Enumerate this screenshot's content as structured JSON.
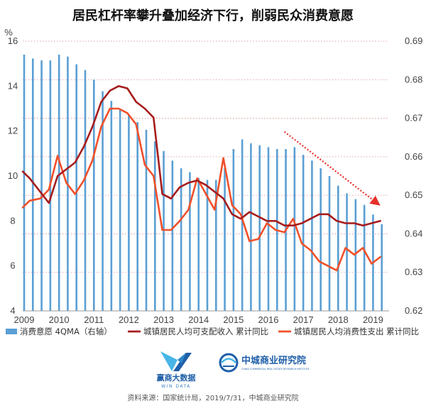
{
  "title": "居民杠杆率攀升叠加经济下行，削弱民众消费意愿",
  "source": "资料来源：国家统计局，2019/7/31，中城商业研究院",
  "logos": {
    "left_main": "赢商大数据",
    "left_sub": "WIN DATA",
    "right_main": "中城商业研究院",
    "right_sub": "CHINA COMMERCIAL REAL ESTATE RESEARCH INSTITUTE"
  },
  "colors": {
    "bars": "#5a9fd4",
    "income_line": "#a61c1c",
    "spending_line": "#f0502a",
    "trend_arrow": "#e8302a",
    "grid": "#d98c8c"
  },
  "chart_data": {
    "type": "bar+line",
    "left_axis": {
      "unit": "%",
      "ylim": [
        4,
        16
      ],
      "ticks": [
        4,
        6,
        8,
        10,
        12,
        14,
        16
      ]
    },
    "right_axis": {
      "ylim": [
        0.62,
        0.69
      ],
      "ticks": [
        0.62,
        0.63,
        0.64,
        0.65,
        0.66,
        0.67,
        0.68,
        0.69
      ]
    },
    "x_ticks": [
      "2009",
      "2010",
      "2011",
      "2012",
      "2013",
      "2014",
      "2015",
      "2016",
      "2017",
      "2018",
      "2019"
    ],
    "x_range": [
      2009,
      2019.5
    ],
    "grid": "horizontal dotted",
    "legend_position": "bottom",
    "legend": [
      {
        "key": "bars",
        "label": "消费意愿 4QMA（右轴）"
      },
      {
        "key": "income",
        "label": "城镇居民人均可支配收入 累计同比"
      },
      {
        "key": "spending",
        "label": "城镇居民人均消费性支出 累计同比"
      }
    ],
    "bars": {
      "name": "消费意愿 4QMA（右轴）",
      "axis": "right",
      "points": [
        [
          2009.0,
          0.6865
        ],
        [
          2009.25,
          0.6855
        ],
        [
          2009.5,
          0.685
        ],
        [
          2009.75,
          0.685
        ],
        [
          2010.0,
          0.6865
        ],
        [
          2010.25,
          0.686
        ],
        [
          2010.5,
          0.684
        ],
        [
          2010.75,
          0.6825
        ],
        [
          2011.0,
          0.68
        ],
        [
          2011.25,
          0.677
        ],
        [
          2011.5,
          0.6745
        ],
        [
          2011.75,
          0.6725
        ],
        [
          2012.0,
          0.671
        ],
        [
          2012.25,
          0.669
        ],
        [
          2012.5,
          0.667
        ],
        [
          2012.75,
          0.664
        ],
        [
          2013.0,
          0.6615
        ],
        [
          2013.25,
          0.659
        ],
        [
          2013.5,
          0.657
        ],
        [
          2013.75,
          0.656
        ],
        [
          2014.0,
          0.6545
        ],
        [
          2014.25,
          0.654
        ],
        [
          2014.5,
          0.654
        ],
        [
          2014.75,
          0.657
        ],
        [
          2015.0,
          0.662
        ],
        [
          2015.25,
          0.6645
        ],
        [
          2015.5,
          0.6635
        ],
        [
          2015.75,
          0.663
        ],
        [
          2016.0,
          0.6625
        ],
        [
          2016.25,
          0.662
        ],
        [
          2016.5,
          0.662
        ],
        [
          2016.75,
          0.6625
        ],
        [
          2017.0,
          0.6605
        ],
        [
          2017.25,
          0.659
        ],
        [
          2017.5,
          0.657
        ],
        [
          2017.75,
          0.655
        ],
        [
          2018.0,
          0.6525
        ],
        [
          2018.25,
          0.6505
        ],
        [
          2018.5,
          0.649
        ],
        [
          2018.75,
          0.6475
        ],
        [
          2019.0,
          0.645
        ],
        [
          2019.25,
          0.6425
        ]
      ]
    },
    "income": {
      "name": "城镇居民人均可支配收入 累计同比",
      "axis": "left",
      "points": [
        [
          2009.0,
          10.2
        ],
        [
          2009.2,
          9.9
        ],
        [
          2009.5,
          9.3
        ],
        [
          2009.75,
          8.8
        ],
        [
          2010.0,
          10.0
        ],
        [
          2010.25,
          10.3
        ],
        [
          2010.5,
          10.6
        ],
        [
          2010.75,
          11.3
        ],
        [
          2011.0,
          12.2
        ],
        [
          2011.25,
          13.3
        ],
        [
          2011.5,
          13.8
        ],
        [
          2011.75,
          14.0
        ],
        [
          2012.0,
          13.9
        ],
        [
          2012.25,
          13.3
        ],
        [
          2012.5,
          13.0
        ],
        [
          2012.75,
          12.6
        ],
        [
          2013.0,
          9.2
        ],
        [
          2013.25,
          9.0
        ],
        [
          2013.5,
          9.5
        ],
        [
          2013.75,
          9.7
        ],
        [
          2014.0,
          9.8
        ],
        [
          2014.25,
          9.6
        ],
        [
          2014.5,
          9.3
        ],
        [
          2014.75,
          9.0
        ],
        [
          2015.0,
          8.3
        ],
        [
          2015.25,
          8.1
        ],
        [
          2015.5,
          8.4
        ],
        [
          2015.75,
          8.2
        ],
        [
          2016.0,
          8.0
        ],
        [
          2016.25,
          8.0
        ],
        [
          2016.5,
          7.8
        ],
        [
          2016.75,
          7.8
        ],
        [
          2017.0,
          7.9
        ],
        [
          2017.25,
          8.1
        ],
        [
          2017.5,
          8.3
        ],
        [
          2017.75,
          8.3
        ],
        [
          2018.0,
          8.0
        ],
        [
          2018.25,
          7.9
        ],
        [
          2018.5,
          7.9
        ],
        [
          2018.75,
          7.8
        ],
        [
          2019.0,
          7.9
        ],
        [
          2019.25,
          8.0
        ]
      ]
    },
    "spending": {
      "name": "城镇居民人均消费性支出 累计同比",
      "axis": "left",
      "points": [
        [
          2009.0,
          8.6
        ],
        [
          2009.2,
          8.9
        ],
        [
          2009.5,
          9.0
        ],
        [
          2009.75,
          9.4
        ],
        [
          2010.0,
          10.9
        ],
        [
          2010.25,
          9.7
        ],
        [
          2010.5,
          9.2
        ],
        [
          2010.75,
          9.8
        ],
        [
          2011.0,
          10.7
        ],
        [
          2011.25,
          12.2
        ],
        [
          2011.5,
          13.0
        ],
        [
          2011.75,
          13.0
        ],
        [
          2012.0,
          12.8
        ],
        [
          2012.25,
          12.3
        ],
        [
          2012.5,
          10.5
        ],
        [
          2012.75,
          10.0
        ],
        [
          2013.0,
          7.6
        ],
        [
          2013.25,
          7.6
        ],
        [
          2013.5,
          8.0
        ],
        [
          2013.75,
          8.5
        ],
        [
          2014.0,
          9.9
        ],
        [
          2014.25,
          9.2
        ],
        [
          2014.5,
          8.5
        ],
        [
          2014.75,
          10.8
        ],
        [
          2015.0,
          8.7
        ],
        [
          2015.25,
          8.3
        ],
        [
          2015.5,
          7.1
        ],
        [
          2015.75,
          7.2
        ],
        [
          2016.0,
          7.9
        ],
        [
          2016.25,
          7.6
        ],
        [
          2016.5,
          7.5
        ],
        [
          2016.75,
          8.1
        ],
        [
          2017.0,
          7.0
        ],
        [
          2017.25,
          6.7
        ],
        [
          2017.5,
          6.2
        ],
        [
          2017.75,
          6.0
        ],
        [
          2018.0,
          5.8
        ],
        [
          2018.25,
          6.8
        ],
        [
          2018.5,
          6.5
        ],
        [
          2018.75,
          6.8
        ],
        [
          2019.0,
          6.1
        ],
        [
          2019.25,
          6.4
        ]
      ]
    },
    "annotation": {
      "type": "downward trend arrow",
      "from": [
        2016.5,
        0.6665
      ],
      "to": [
        2019.25,
        0.6473
      ]
    }
  }
}
